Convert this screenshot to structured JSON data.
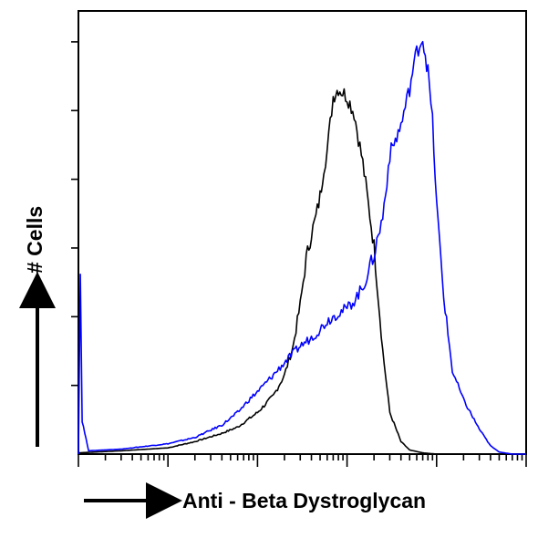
{
  "chart_data": {
    "type": "line",
    "title": "",
    "xlabel": "Anti - Beta Dystroglycan",
    "ylabel": "# Cells",
    "x_scale": "log",
    "xlim": [
      1,
      100000
    ],
    "ylim": [
      0,
      100
    ],
    "grid": false,
    "legend": "none",
    "series": [
      {
        "color": "#000000",
        "x": [
          1,
          3,
          10,
          20,
          40,
          60,
          100,
          150,
          200,
          250,
          300,
          350,
          400,
          450,
          500,
          550,
          600,
          700,
          800,
          1000,
          1200,
          1500,
          2000,
          2500,
          3000,
          4000,
          5000,
          7000,
          10000
        ],
        "y": [
          0.3,
          0.8,
          1.5,
          3,
          5,
          6.5,
          10,
          14,
          19,
          26,
          36,
          47,
          53,
          57,
          62,
          69,
          73,
          86,
          88,
          86,
          82,
          70,
          50,
          25,
          10,
          3,
          1,
          0.3,
          0
        ]
      },
      {
        "color": "#0000ff",
        "x": [
          1,
          1.05,
          1.1,
          1.3,
          3,
          10,
          20,
          40,
          60,
          80,
          100,
          150,
          200,
          300,
          400,
          500,
          600,
          800,
          1000,
          1200,
          1500,
          2000,
          2500,
          3000,
          4000,
          5000,
          6000,
          7000,
          8000,
          9000,
          10000,
          12000,
          15000,
          20000,
          30000,
          40000,
          50000,
          70000,
          100000
        ],
        "y": [
          0,
          43.5,
          8,
          0.8,
          1.2,
          2.5,
          4,
          7,
          10,
          13,
          15,
          19,
          22,
          26,
          28,
          30,
          32,
          34,
          35,
          37,
          40,
          48,
          57,
          72,
          79,
          88,
          97,
          100,
          92,
          80,
          60,
          38,
          20,
          13,
          6,
          2,
          0.5,
          0,
          0
        ]
      }
    ]
  }
}
